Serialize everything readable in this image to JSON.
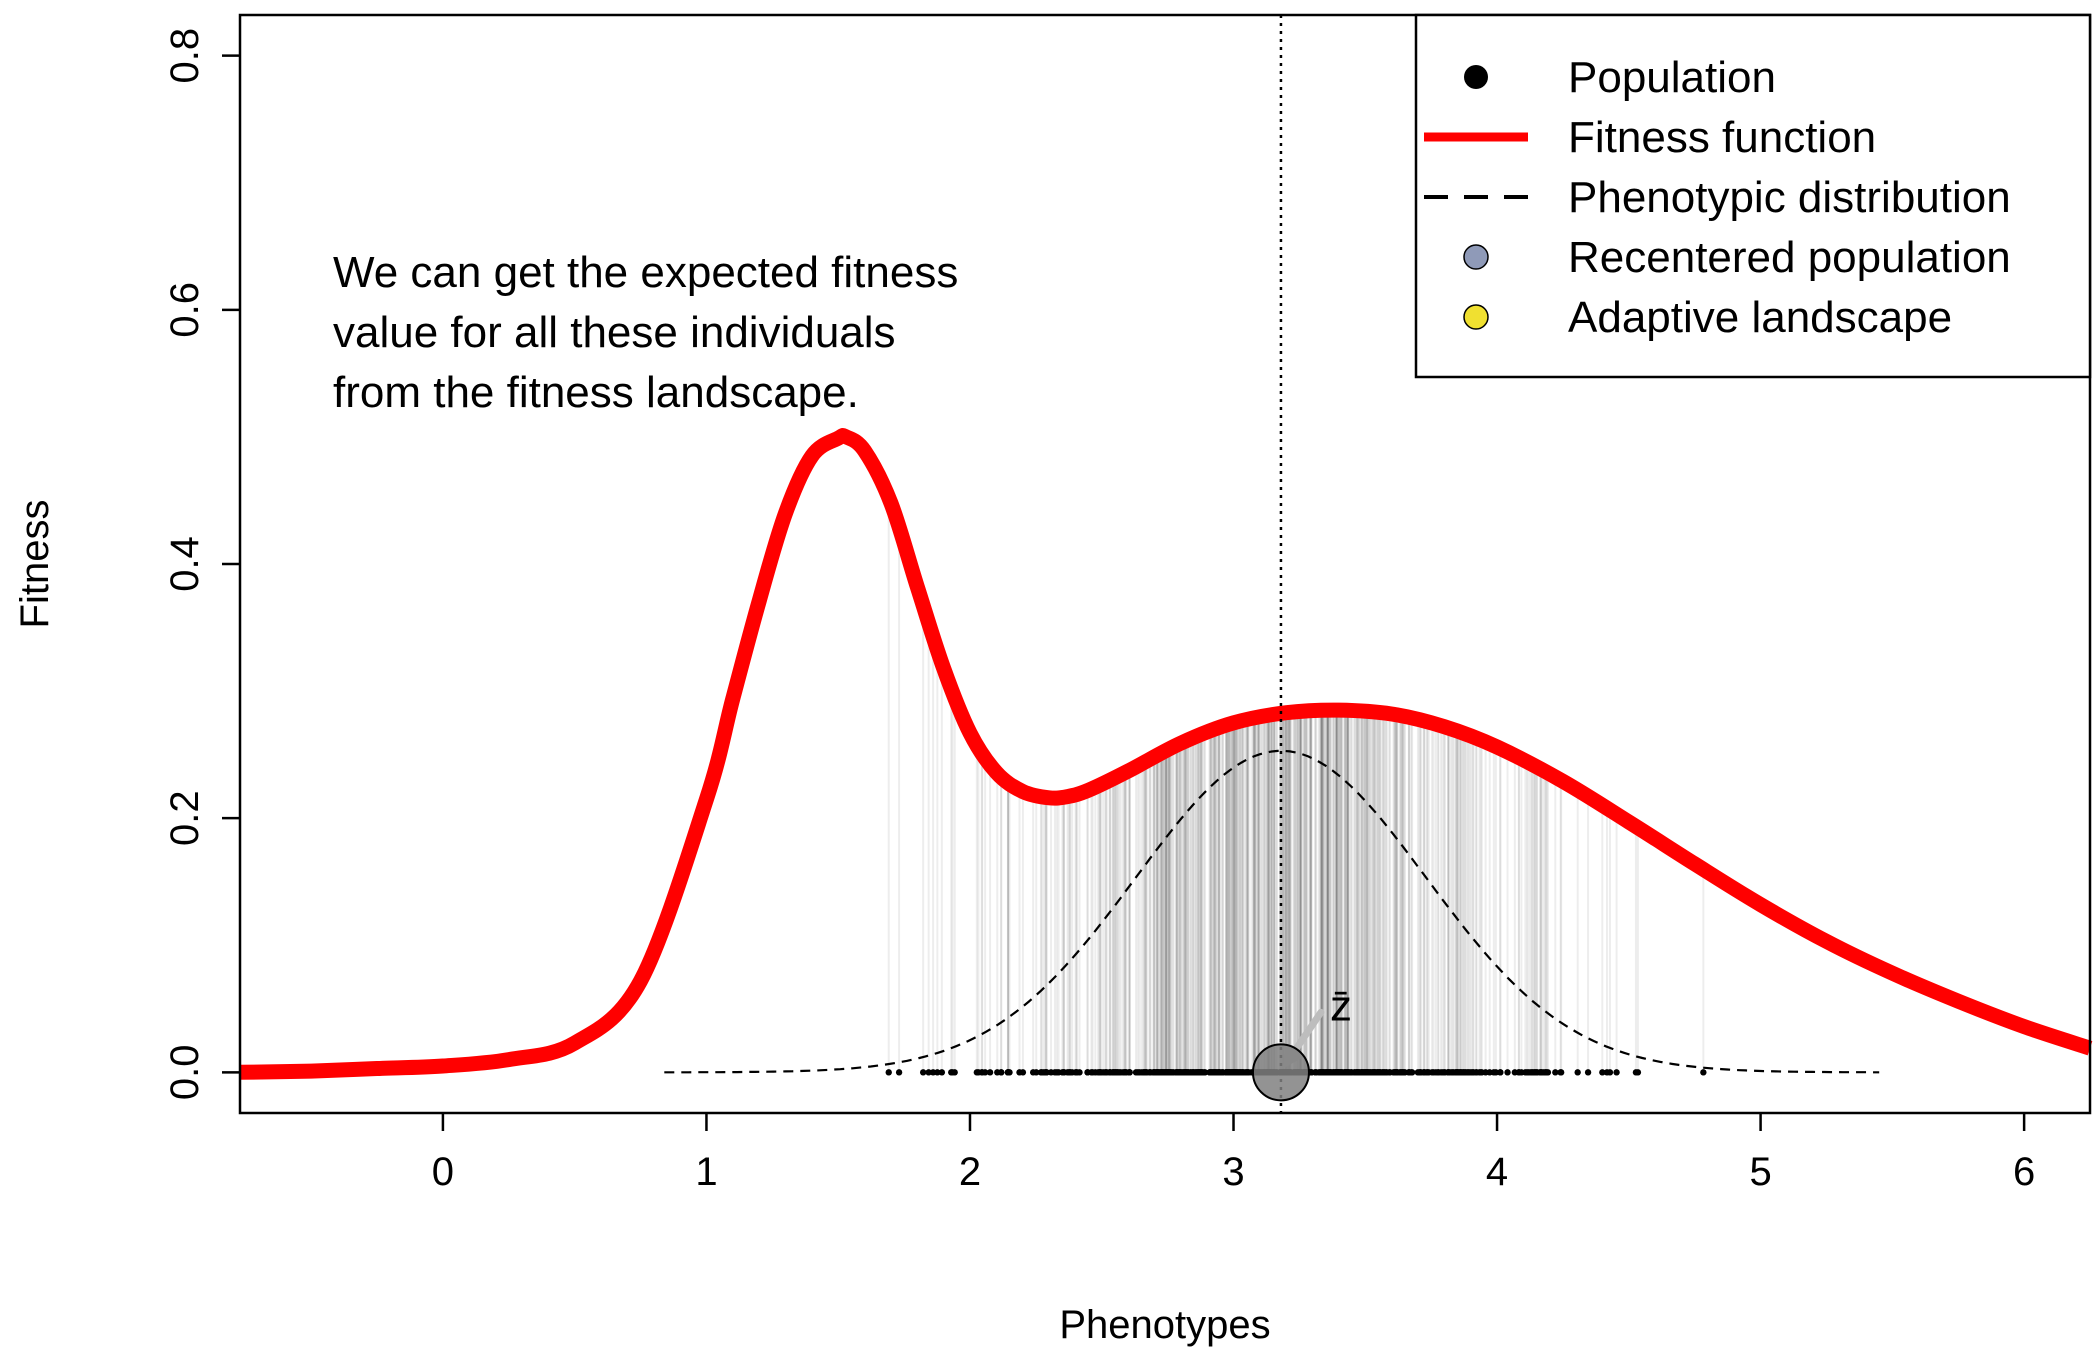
{
  "chart_data": {
    "type": "line",
    "title": "",
    "xlabel": "Phenotypes",
    "ylabel": "Fitness",
    "xlim": [
      -0.77,
      6.25
    ],
    "ylim": [
      -0.032,
      0.832
    ],
    "x_ticks": [
      0,
      1,
      2,
      3,
      4,
      5,
      6
    ],
    "y_ticks": [
      0.0,
      0.2,
      0.4,
      0.6,
      0.8
    ],
    "x_tick_labels": [
      "0",
      "1",
      "2",
      "3",
      "4",
      "5",
      "6"
    ],
    "y_tick_labels": [
      "0.0",
      "0.2",
      "0.4",
      "0.6",
      "0.8"
    ],
    "grid": false,
    "legend_position": "top-right",
    "legend": [
      {
        "label": "Population",
        "symbol": "point",
        "color": "#000000"
      },
      {
        "label": "Fitness function",
        "symbol": "line",
        "color": "#ff0000"
      },
      {
        "label": "Phenotypic distribution",
        "symbol": "dashed-line",
        "color": "#000000"
      },
      {
        "label": "Recentered population",
        "symbol": "point",
        "color": "#8f9ab8"
      },
      {
        "label": "Adaptive landscape",
        "symbol": "point",
        "color": "#f0e030"
      }
    ],
    "annotation_lines": [
      "We can get the expected fitness",
      "value for all these individuals",
      "from the fitness landscape."
    ],
    "mean_label": "z̄",
    "mean_phenotype": 3.18,
    "series": [
      {
        "name": "Fitness function",
        "color": "#ff0000",
        "x": [
          -0.77,
          -0.5,
          -0.25,
          0.0,
          0.25,
          0.5,
          0.75,
          1.0,
          1.1,
          1.2,
          1.3,
          1.4,
          1.5,
          1.53,
          1.6,
          1.7,
          1.8,
          1.9,
          2.0,
          2.1,
          2.2,
          2.3,
          2.37,
          2.45,
          2.6,
          2.8,
          3.0,
          3.2,
          3.4,
          3.6,
          3.8,
          4.0,
          4.25,
          4.5,
          4.75,
          5.0,
          5.25,
          5.5,
          5.75,
          6.0,
          6.25
        ],
        "y": [
          0.0,
          0.001,
          0.003,
          0.005,
          0.01,
          0.023,
          0.072,
          0.215,
          0.294,
          0.371,
          0.44,
          0.485,
          0.499,
          0.5,
          0.489,
          0.448,
          0.382,
          0.318,
          0.267,
          0.236,
          0.221,
          0.216,
          0.217,
          0.222,
          0.237,
          0.259,
          0.275,
          0.283,
          0.285,
          0.282,
          0.272,
          0.256,
          0.229,
          0.197,
          0.164,
          0.132,
          0.103,
          0.078,
          0.056,
          0.036,
          0.019
        ]
      },
      {
        "name": "Phenotypic distribution",
        "color": "#000000",
        "dash": true,
        "mean": 3.18,
        "sd": 0.55,
        "peak": 0.253,
        "x_range": [
          0.84,
          5.45
        ]
      }
    ],
    "population_range": [
      1.48,
      4.82
    ],
    "population_count": 600
  }
}
